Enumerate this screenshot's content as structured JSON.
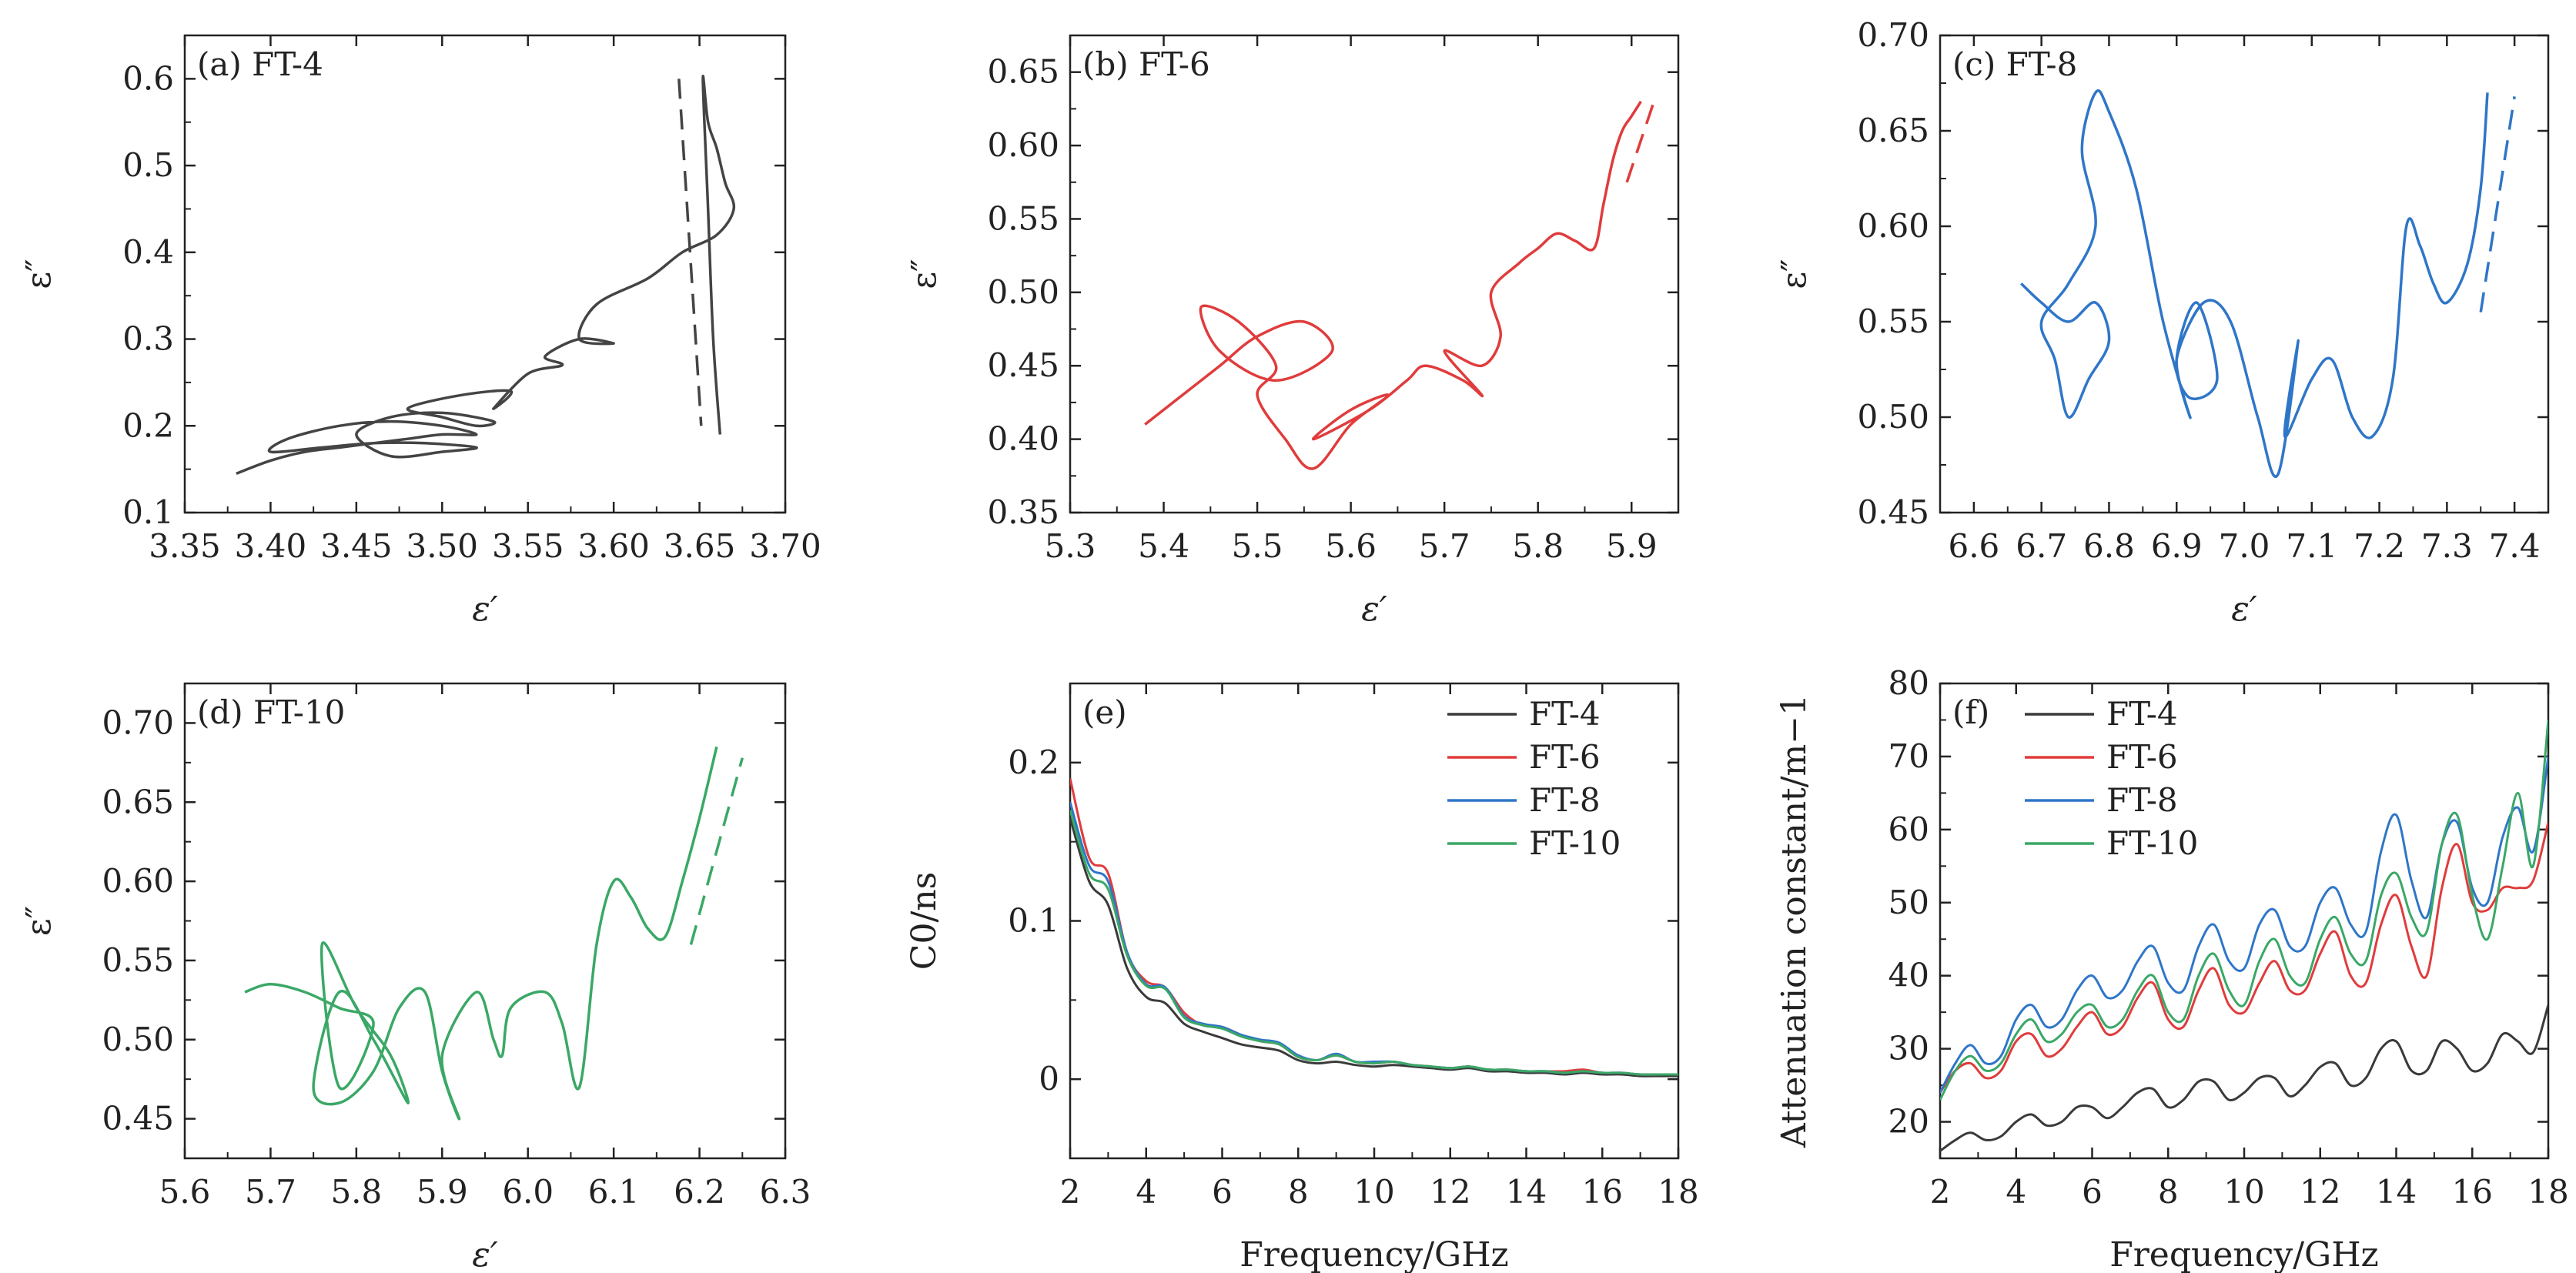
{
  "chart_data": [
    {
      "id": "a",
      "type": "line",
      "panel_label": "(a) FT-4",
      "xlabel": "ε′",
      "ylabel": "ε″",
      "xlim": [
        3.35,
        3.7
      ],
      "ylim": [
        0.1,
        0.65
      ],
      "xticks": [
        "3.35",
        "3.40",
        "3.45",
        "3.50",
        "3.55",
        "3.60",
        "3.65",
        "3.70"
      ],
      "yticks": [
        "0.1",
        "0.2",
        "0.3",
        "0.4",
        "0.5",
        "0.6"
      ],
      "color": "#444444",
      "series": [
        {
          "name": "FT-4",
          "x": [
            3.38,
            3.4,
            3.42,
            3.44,
            3.46,
            3.48,
            3.5,
            3.52,
            3.5,
            3.47,
            3.44,
            3.41,
            3.4,
            3.43,
            3.46,
            3.49,
            3.52,
            3.5,
            3.47,
            3.45,
            3.47,
            3.5,
            3.53,
            3.52,
            3.5,
            3.48,
            3.51,
            3.54,
            3.53,
            3.55,
            3.57,
            3.56,
            3.58,
            3.6,
            3.58,
            3.59,
            3.62,
            3.64,
            3.66,
            3.67,
            3.665,
            3.66,
            3.655,
            3.652,
            3.655,
            3.658,
            3.662
          ],
          "y": [
            0.145,
            0.16,
            0.17,
            0.175,
            0.18,
            0.185,
            0.19,
            0.19,
            0.2,
            0.205,
            0.2,
            0.185,
            0.17,
            0.175,
            0.18,
            0.18,
            0.175,
            0.17,
            0.165,
            0.19,
            0.21,
            0.215,
            0.205,
            0.2,
            0.21,
            0.22,
            0.235,
            0.24,
            0.22,
            0.26,
            0.27,
            0.28,
            0.3,
            0.295,
            0.3,
            0.34,
            0.37,
            0.4,
            0.42,
            0.45,
            0.48,
            0.52,
            0.55,
            0.6,
            0.45,
            0.3,
            0.19
          ]
        }
      ],
      "guide": {
        "x": [
          3.638,
          3.651
        ],
        "y": [
          0.6,
          0.2
        ]
      }
    },
    {
      "id": "b",
      "type": "line",
      "panel_label": "(b) FT-6",
      "xlabel": "ε′",
      "ylabel": "ε″",
      "xlim": [
        5.3,
        5.95
      ],
      "ylim": [
        0.35,
        0.675
      ],
      "xticks": [
        "5.3",
        "5.4",
        "5.5",
        "5.6",
        "5.7",
        "5.8",
        "5.9"
      ],
      "yticks": [
        "0.35",
        "0.40",
        "0.45",
        "0.50",
        "0.55",
        "0.60",
        "0.65"
      ],
      "color": "#e03c3c",
      "series": [
        {
          "name": "FT-6",
          "x": [
            5.38,
            5.42,
            5.46,
            5.5,
            5.55,
            5.58,
            5.52,
            5.46,
            5.44,
            5.48,
            5.52,
            5.5,
            5.53,
            5.56,
            5.6,
            5.64,
            5.6,
            5.56,
            5.62,
            5.66,
            5.68,
            5.72,
            5.74,
            5.7,
            5.74,
            5.76,
            5.75,
            5.78,
            5.8,
            5.82,
            5.84,
            5.86,
            5.87,
            5.88,
            5.89,
            5.9,
            5.91
          ],
          "y": [
            0.41,
            0.43,
            0.45,
            0.47,
            0.48,
            0.46,
            0.44,
            0.46,
            0.49,
            0.48,
            0.45,
            0.43,
            0.4,
            0.38,
            0.41,
            0.43,
            0.42,
            0.4,
            0.42,
            0.44,
            0.45,
            0.44,
            0.43,
            0.46,
            0.45,
            0.47,
            0.5,
            0.52,
            0.53,
            0.54,
            0.535,
            0.53,
            0.56,
            0.59,
            0.61,
            0.62,
            0.63
          ]
        }
      ],
      "guide": {
        "x": [
          5.895,
          5.925
        ],
        "y": [
          0.575,
          0.632
        ]
      }
    },
    {
      "id": "c",
      "type": "line",
      "panel_label": "(c) FT-8",
      "xlabel": "ε′",
      "ylabel": "ε″",
      "xlim": [
        6.55,
        7.45
      ],
      "ylim": [
        0.45,
        0.7
      ],
      "xticks": [
        "6.6",
        "6.7",
        "6.8",
        "6.9",
        "7.0",
        "7.1",
        "7.2",
        "7.3",
        "7.4"
      ],
      "yticks": [
        "0.45",
        "0.50",
        "0.55",
        "0.60",
        "0.65",
        "0.70"
      ],
      "color": "#2f76c8",
      "series": [
        {
          "name": "FT-8",
          "x": [
            6.67,
            6.7,
            6.74,
            6.78,
            6.8,
            6.77,
            6.74,
            6.72,
            6.7,
            6.74,
            6.78,
            6.76,
            6.78,
            6.8,
            6.84,
            6.88,
            6.92,
            6.9,
            6.93,
            6.96,
            6.92,
            6.9,
            6.94,
            6.98,
            7.02,
            7.05,
            7.08,
            7.06,
            7.1,
            7.13,
            7.16,
            7.19,
            7.22,
            7.24,
            7.26,
            7.28,
            7.3,
            7.33,
            7.35,
            7.36
          ],
          "y": [
            0.57,
            0.56,
            0.55,
            0.56,
            0.54,
            0.52,
            0.5,
            0.53,
            0.55,
            0.57,
            0.6,
            0.64,
            0.67,
            0.66,
            0.62,
            0.55,
            0.5,
            0.53,
            0.56,
            0.52,
            0.51,
            0.53,
            0.56,
            0.55,
            0.5,
            0.47,
            0.54,
            0.49,
            0.52,
            0.53,
            0.5,
            0.49,
            0.52,
            0.6,
            0.59,
            0.57,
            0.56,
            0.58,
            0.62,
            0.67
          ]
        }
      ],
      "guide": {
        "x": [
          7.35,
          7.4
        ],
        "y": [
          0.555,
          0.668
        ]
      }
    },
    {
      "id": "d",
      "type": "line",
      "panel_label": "(d) FT-10",
      "xlabel": "ε′",
      "ylabel": "ε″",
      "xlim": [
        5.6,
        6.3
      ],
      "ylim": [
        0.425,
        0.725
      ],
      "xticks": [
        "5.6",
        "5.7",
        "5.8",
        "5.9",
        "6.0",
        "6.1",
        "6.2",
        "6.3"
      ],
      "yticks": [
        "0.45",
        "0.50",
        "0.55",
        "0.60",
        "0.65",
        "0.70"
      ],
      "color": "#3aa866",
      "series": [
        {
          "name": "FT-10",
          "x": [
            5.67,
            5.7,
            5.74,
            5.78,
            5.82,
            5.78,
            5.76,
            5.8,
            5.84,
            5.86,
            5.82,
            5.78,
            5.75,
            5.78,
            5.82,
            5.85,
            5.88,
            5.9,
            5.92,
            5.9,
            5.94,
            5.96,
            5.97,
            5.98,
            6.02,
            6.04,
            6.06,
            6.08,
            6.1,
            6.12,
            6.14,
            6.16,
            6.18,
            6.2,
            6.22
          ],
          "y": [
            0.53,
            0.535,
            0.53,
            0.52,
            0.51,
            0.47,
            0.56,
            0.52,
            0.49,
            0.46,
            0.5,
            0.53,
            0.47,
            0.46,
            0.48,
            0.52,
            0.53,
            0.48,
            0.45,
            0.49,
            0.53,
            0.5,
            0.49,
            0.52,
            0.53,
            0.51,
            0.47,
            0.56,
            0.6,
            0.59,
            0.57,
            0.565,
            0.6,
            0.64,
            0.685
          ]
        }
      ],
      "guide": {
        "x": [
          6.19,
          6.25
        ],
        "y": [
          0.56,
          0.678
        ]
      }
    },
    {
      "id": "e",
      "type": "line",
      "panel_label": "(e)",
      "xlabel": "Frequency/GHz",
      "ylabel": "C0/ns",
      "xlim": [
        2,
        18
      ],
      "ylim": [
        -0.05,
        0.25
      ],
      "xticks": [
        "2",
        "4",
        "6",
        "8",
        "10",
        "12",
        "14",
        "16",
        "18"
      ],
      "yticks": [
        "0",
        "0.1",
        "0.2"
      ],
      "x": [
        2,
        2.5,
        3,
        3.5,
        4,
        4.5,
        5,
        5.5,
        6,
        6.5,
        7,
        7.5,
        8,
        8.5,
        9,
        9.5,
        10,
        10.5,
        11,
        11.5,
        12,
        12.5,
        13,
        13.5,
        14,
        14.5,
        15,
        15.5,
        16,
        16.5,
        17,
        17.5,
        18
      ],
      "series": [
        {
          "name": "FT-4",
          "color": "#3a3a3a",
          "values": [
            0.165,
            0.125,
            0.11,
            0.07,
            0.052,
            0.048,
            0.035,
            0.03,
            0.026,
            0.022,
            0.02,
            0.018,
            0.012,
            0.01,
            0.011,
            0.009,
            0.008,
            0.009,
            0.008,
            0.007,
            0.006,
            0.007,
            0.005,
            0.005,
            0.004,
            0.004,
            0.003,
            0.004,
            0.003,
            0.003,
            0.002,
            0.002,
            0.002
          ]
        },
        {
          "name": "FT-6",
          "color": "#e03c3c",
          "values": [
            0.19,
            0.14,
            0.13,
            0.08,
            0.062,
            0.058,
            0.042,
            0.034,
            0.033,
            0.028,
            0.024,
            0.022,
            0.014,
            0.012,
            0.015,
            0.011,
            0.01,
            0.011,
            0.009,
            0.008,
            0.007,
            0.008,
            0.006,
            0.006,
            0.005,
            0.005,
            0.005,
            0.006,
            0.004,
            0.004,
            0.003,
            0.003,
            0.003
          ]
        },
        {
          "name": "FT-8",
          "color": "#2f76c8",
          "values": [
            0.175,
            0.135,
            0.125,
            0.08,
            0.06,
            0.058,
            0.04,
            0.035,
            0.033,
            0.028,
            0.025,
            0.023,
            0.015,
            0.012,
            0.016,
            0.011,
            0.011,
            0.011,
            0.009,
            0.008,
            0.007,
            0.008,
            0.006,
            0.006,
            0.005,
            0.005,
            0.004,
            0.005,
            0.004,
            0.004,
            0.003,
            0.003,
            0.003
          ]
        },
        {
          "name": "FT-10",
          "color": "#3aa866",
          "values": [
            0.17,
            0.13,
            0.12,
            0.078,
            0.059,
            0.057,
            0.039,
            0.034,
            0.032,
            0.027,
            0.024,
            0.022,
            0.014,
            0.012,
            0.015,
            0.011,
            0.01,
            0.011,
            0.009,
            0.008,
            0.007,
            0.008,
            0.006,
            0.006,
            0.005,
            0.005,
            0.004,
            0.005,
            0.004,
            0.004,
            0.003,
            0.003,
            0.003
          ]
        }
      ],
      "legend": "top-right"
    },
    {
      "id": "f",
      "type": "line",
      "panel_label": "(f)",
      "xlabel": "Frequency/GHz",
      "ylabel": "Attenuation constant/m−1",
      "xlim": [
        2,
        18
      ],
      "ylim": [
        15,
        80
      ],
      "xticks": [
        "2",
        "4",
        "6",
        "8",
        "10",
        "12",
        "14",
        "16",
        "18"
      ],
      "yticks": [
        "20",
        "30",
        "40",
        "50",
        "60",
        "70",
        "80"
      ],
      "x": [
        2,
        2.4,
        2.8,
        3.2,
        3.6,
        4.0,
        4.4,
        4.8,
        5.2,
        5.6,
        6.0,
        6.4,
        6.8,
        7.2,
        7.6,
        8.0,
        8.4,
        8.8,
        9.2,
        9.6,
        10.0,
        10.4,
        10.8,
        11.2,
        11.6,
        12.0,
        12.4,
        12.8,
        13.2,
        13.6,
        14.0,
        14.4,
        14.8,
        15.2,
        15.6,
        16.0,
        16.4,
        16.8,
        17.2,
        17.6,
        18.0
      ],
      "series": [
        {
          "name": "FT-4",
          "color": "#3a3a3a",
          "values": [
            16,
            17.5,
            18.5,
            17.5,
            18,
            20,
            21,
            19.5,
            20,
            22,
            22,
            20.5,
            22,
            24,
            24.5,
            22,
            23,
            25.5,
            25.5,
            23,
            24,
            26,
            26,
            23.5,
            25,
            27.5,
            28,
            25,
            26,
            30,
            31,
            27,
            27,
            31,
            30,
            27,
            28,
            32,
            31,
            29.5,
            36
          ]
        },
        {
          "name": "FT-6",
          "color": "#e03c3c",
          "values": [
            24,
            27,
            28,
            26,
            27,
            31,
            32,
            29,
            30,
            33,
            35,
            32,
            33,
            37,
            39,
            34,
            33,
            38,
            41,
            36,
            35,
            39,
            42,
            38,
            38,
            43,
            46,
            40,
            39,
            47,
            51,
            44,
            40,
            52,
            58,
            50,
            49,
            52,
            52,
            53,
            61
          ]
        },
        {
          "name": "FT-8",
          "color": "#2f76c8",
          "values": [
            24,
            28,
            30.5,
            28,
            29,
            34,
            36,
            33,
            34,
            38,
            40,
            37,
            38,
            42,
            44,
            39,
            38,
            44,
            47,
            42,
            41,
            47,
            49,
            44,
            44,
            50,
            52,
            47,
            46,
            57,
            62,
            53,
            48,
            58,
            61,
            52,
            50,
            59,
            63,
            57,
            70
          ]
        },
        {
          "name": "FT-10",
          "color": "#3aa866",
          "values": [
            23,
            27,
            29,
            27,
            28,
            32,
            34,
            31,
            32,
            35,
            36,
            33,
            34,
            38,
            40,
            35,
            34,
            40,
            43,
            38,
            36,
            42,
            45,
            40,
            39,
            45,
            48,
            43,
            42,
            51,
            54,
            48,
            46,
            58,
            62,
            51,
            45,
            55,
            65,
            55,
            75
          ]
        }
      ],
      "legend": "top-left"
    }
  ]
}
